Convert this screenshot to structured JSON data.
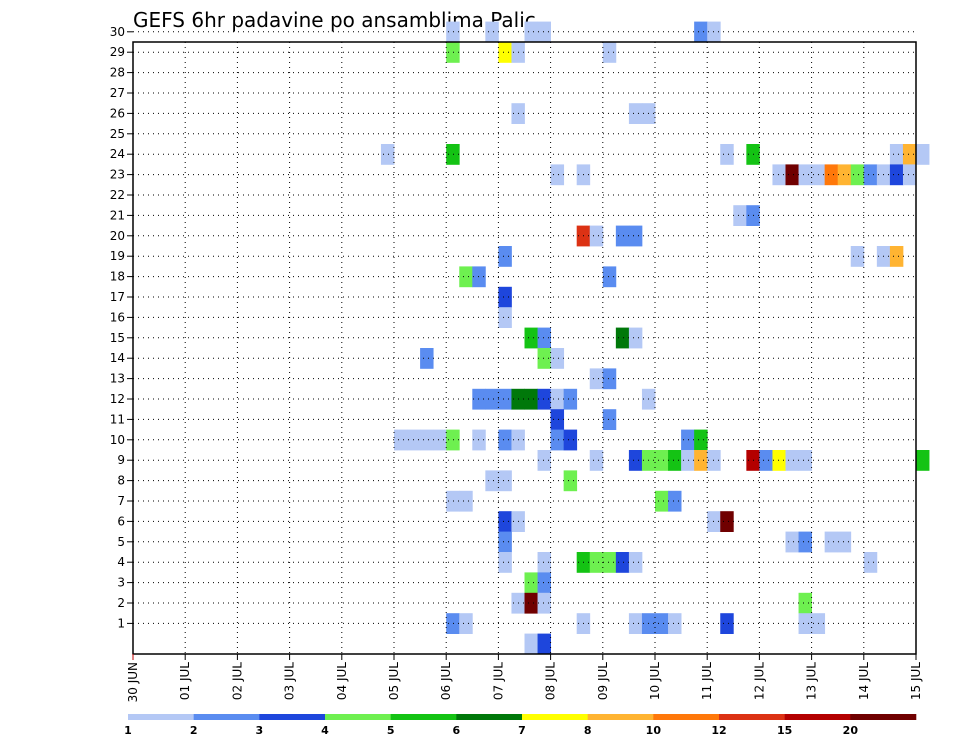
{
  "chart_data": {
    "type": "heatmap",
    "title": "GEFS 6hr padavine po ansamblima Palic",
    "xlabel": "",
    "ylabel": "",
    "x_tick_labels": [
      "30 JUN",
      "01 JUL",
      "02 JUL",
      "03 JUL",
      "04 JUL",
      "05 JUL",
      "06 JUL",
      "07 JUL",
      "08 JUL",
      "09 JUL",
      "10 JUL",
      "11 JUL",
      "12 JUL",
      "13 JUL",
      "14 JUL",
      "15 JUL"
    ],
    "y_tick_labels": [
      "1",
      "2",
      "3",
      "4",
      "5",
      "6",
      "7",
      "8",
      "9",
      "10",
      "11",
      "12",
      "13",
      "14",
      "15",
      "16",
      "17",
      "18",
      "19",
      "20",
      "21",
      "22",
      "23",
      "24",
      "25",
      "26",
      "27",
      "28",
      "29",
      "30"
    ],
    "xlim_days": [
      0,
      15
    ],
    "ylim_members": [
      0,
      30
    ],
    "step_per_day": 4,
    "grid": "dotted",
    "colorbar": {
      "labels": [
        "1",
        "2",
        "3",
        "4",
        "5",
        "6",
        "7",
        "8",
        "10",
        "12",
        "15",
        "20"
      ],
      "colors": [
        "#b4c8f5",
        "#5a8cf0",
        "#1e46dc",
        "#6ef050",
        "#14c314",
        "#00780a",
        "#ffff00",
        "#ffb432",
        "#ff780a",
        "#dc3214",
        "#b40000",
        "#700000"
      ]
    },
    "cells": [
      {
        "m": 30,
        "i": [
          [
            24,
            1
          ],
          [
            27,
            1
          ],
          [
            30,
            1
          ],
          [
            31,
            1
          ],
          [
            43,
            2
          ],
          [
            44,
            1
          ]
        ]
      },
      {
        "m": 29,
        "i": [
          [
            24,
            4
          ],
          [
            28,
            7
          ],
          [
            29,
            1
          ],
          [
            36,
            1
          ]
        ]
      },
      {
        "m": 26,
        "i": [
          [
            29,
            1
          ],
          [
            38,
            1
          ],
          [
            39,
            1
          ]
        ]
      },
      {
        "m": 24,
        "i": [
          [
            19,
            1
          ],
          [
            24,
            5
          ],
          [
            45,
            1
          ],
          [
            47,
            5
          ],
          [
            58,
            1
          ],
          [
            59,
            8
          ],
          [
            60,
            1
          ]
        ]
      },
      {
        "m": 23,
        "i": [
          [
            32,
            1
          ],
          [
            34,
            1
          ],
          [
            49,
            1
          ],
          [
            50,
            12
          ],
          [
            51,
            1
          ],
          [
            52,
            1
          ],
          [
            53,
            9
          ],
          [
            54,
            8
          ],
          [
            55,
            4
          ],
          [
            56,
            2
          ],
          [
            57,
            1
          ],
          [
            58,
            3
          ],
          [
            59,
            1
          ]
        ]
      },
      {
        "m": 21,
        "i": [
          [
            46,
            1
          ],
          [
            47,
            2
          ]
        ]
      },
      {
        "m": 20,
        "i": [
          [
            34,
            10
          ],
          [
            35,
            1
          ],
          [
            37,
            2
          ],
          [
            38,
            2
          ]
        ]
      },
      {
        "m": 19,
        "i": [
          [
            28,
            2
          ],
          [
            55,
            1
          ],
          [
            57,
            1
          ],
          [
            58,
            8
          ]
        ]
      },
      {
        "m": 18,
        "i": [
          [
            25,
            4
          ],
          [
            26,
            2
          ],
          [
            36,
            2
          ]
        ]
      },
      {
        "m": 17,
        "i": [
          [
            28,
            3
          ]
        ]
      },
      {
        "m": 16,
        "i": [
          [
            28,
            1
          ]
        ]
      },
      {
        "m": 15,
        "i": [
          [
            30,
            5
          ],
          [
            31,
            2
          ],
          [
            37,
            6
          ],
          [
            38,
            1
          ]
        ]
      },
      {
        "m": 14,
        "i": [
          [
            22,
            2
          ],
          [
            31,
            4
          ],
          [
            32,
            1
          ]
        ]
      },
      {
        "m": 13,
        "i": [
          [
            35,
            1
          ],
          [
            36,
            2
          ]
        ]
      },
      {
        "m": 12,
        "i": [
          [
            26,
            2
          ],
          [
            27,
            2
          ],
          [
            28,
            2
          ],
          [
            29,
            6
          ],
          [
            30,
            6
          ],
          [
            31,
            3
          ],
          [
            32,
            1
          ],
          [
            33,
            2
          ],
          [
            39,
            1
          ]
        ]
      },
      {
        "m": 11,
        "i": [
          [
            32,
            3
          ],
          [
            36,
            2
          ]
        ]
      },
      {
        "m": 10,
        "i": [
          [
            20,
            1
          ],
          [
            21,
            1
          ],
          [
            22,
            1
          ],
          [
            23,
            1
          ],
          [
            24,
            4
          ],
          [
            26,
            1
          ],
          [
            28,
            2
          ],
          [
            29,
            1
          ],
          [
            32,
            2
          ],
          [
            33,
            3
          ],
          [
            42,
            2
          ],
          [
            43,
            5
          ]
        ]
      },
      {
        "m": 9,
        "i": [
          [
            31,
            1
          ],
          [
            35,
            1
          ],
          [
            38,
            3
          ],
          [
            39,
            4
          ],
          [
            40,
            4
          ],
          [
            41,
            5
          ],
          [
            42,
            1
          ],
          [
            43,
            8
          ],
          [
            44,
            1
          ],
          [
            47,
            11
          ],
          [
            48,
            2
          ],
          [
            49,
            7
          ],
          [
            50,
            1
          ],
          [
            51,
            1
          ],
          [
            60,
            5
          ]
        ]
      },
      {
        "m": 8,
        "i": [
          [
            27,
            1
          ],
          [
            28,
            1
          ],
          [
            33,
            4
          ]
        ]
      },
      {
        "m": 7,
        "i": [
          [
            24,
            1
          ],
          [
            25,
            1
          ],
          [
            40,
            4
          ],
          [
            41,
            2
          ]
        ]
      },
      {
        "m": 6,
        "i": [
          [
            28,
            3
          ],
          [
            29,
            1
          ],
          [
            44,
            1
          ],
          [
            45,
            12
          ]
        ]
      },
      {
        "m": 5,
        "i": [
          [
            28,
            2
          ],
          [
            50,
            1
          ],
          [
            51,
            2
          ],
          [
            53,
            1
          ],
          [
            54,
            1
          ]
        ]
      },
      {
        "m": 4,
        "i": [
          [
            28,
            1
          ],
          [
            31,
            1
          ],
          [
            34,
            5
          ],
          [
            35,
            4
          ],
          [
            36,
            4
          ],
          [
            37,
            3
          ],
          [
            38,
            1
          ],
          [
            56,
            1
          ]
        ]
      },
      {
        "m": 3,
        "i": [
          [
            30,
            4
          ],
          [
            31,
            2
          ]
        ]
      },
      {
        "m": 2,
        "i": [
          [
            29,
            1
          ],
          [
            30,
            12
          ],
          [
            31,
            1
          ],
          [
            51,
            4
          ]
        ]
      },
      {
        "m": 1,
        "i": [
          [
            24,
            2
          ],
          [
            25,
            1
          ],
          [
            34,
            1
          ],
          [
            38,
            1
          ],
          [
            39,
            2
          ],
          [
            40,
            2
          ],
          [
            41,
            1
          ],
          [
            45,
            3
          ],
          [
            51,
            1
          ],
          [
            52,
            1
          ]
        ]
      },
      {
        "m": 0,
        "i": [
          [
            30,
            1
          ],
          [
            31,
            3
          ]
        ]
      }
    ]
  }
}
